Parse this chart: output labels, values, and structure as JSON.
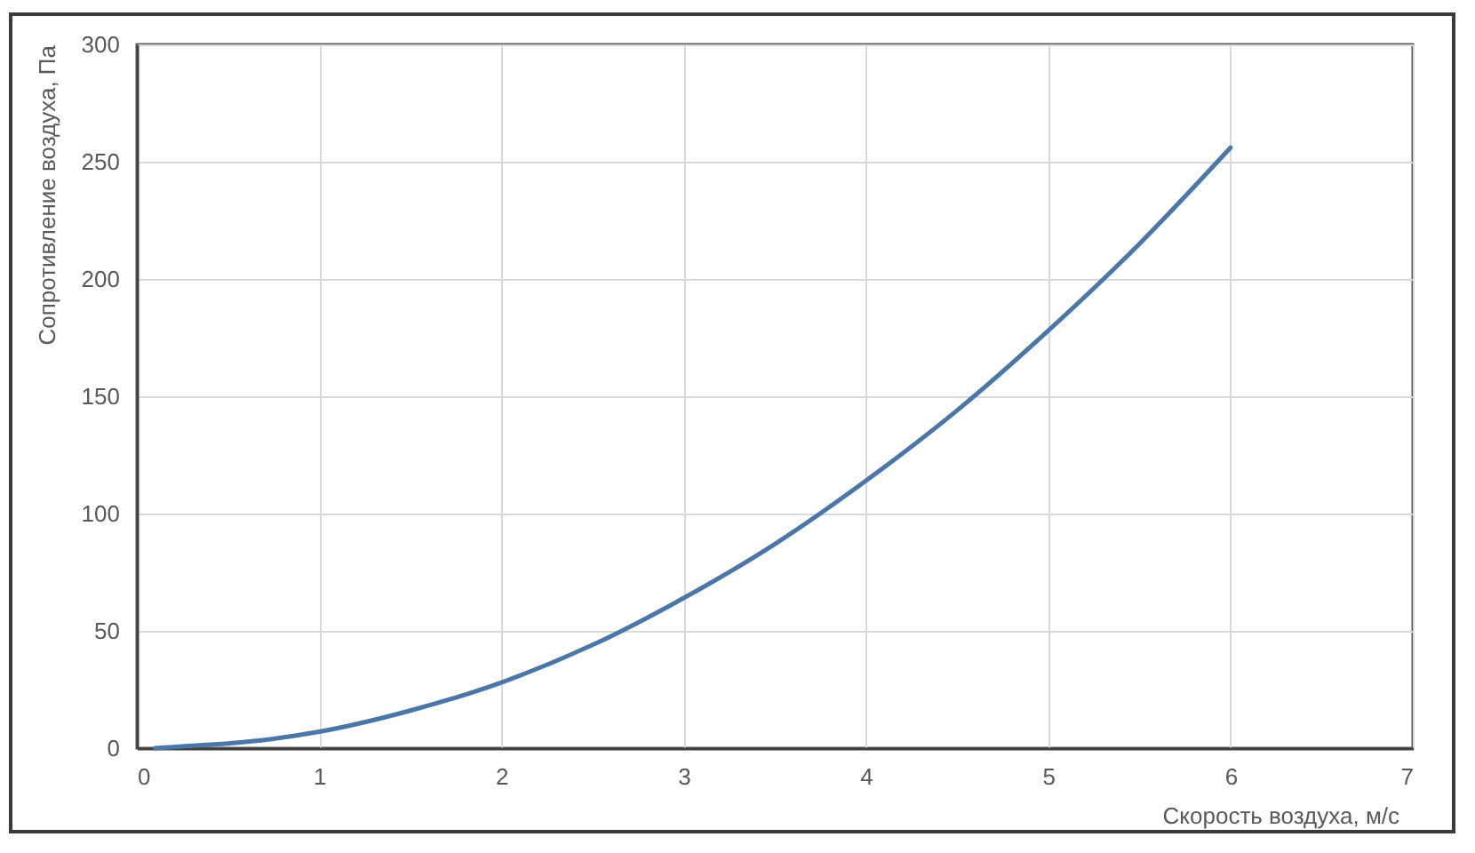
{
  "chart_data": {
    "type": "line",
    "xlabel": "Скорость воздуха, м/с",
    "ylabel": "Сопротивление воздуха, Па",
    "x": [
      0.1,
      0.3,
      0.5,
      0.75,
      1,
      1.5,
      2,
      2.5,
      3,
      3.5,
      4,
      4.5,
      5,
      5.5,
      6
    ],
    "series": [
      {
        "color": "#4a76a8",
        "values": [
          0,
          1,
          2,
          4,
          7,
          16,
          28,
          44,
          64,
          87,
          114,
          144,
          178,
          215,
          256
        ]
      }
    ],
    "xlim": [
      0,
      7
    ],
    "ylim": [
      0,
      300
    ],
    "xticks": [
      0,
      1,
      2,
      3,
      4,
      5,
      6,
      7
    ],
    "yticks": [
      0,
      50,
      100,
      150,
      200,
      250,
      300
    ],
    "grid": true,
    "line_style": "solid"
  }
}
